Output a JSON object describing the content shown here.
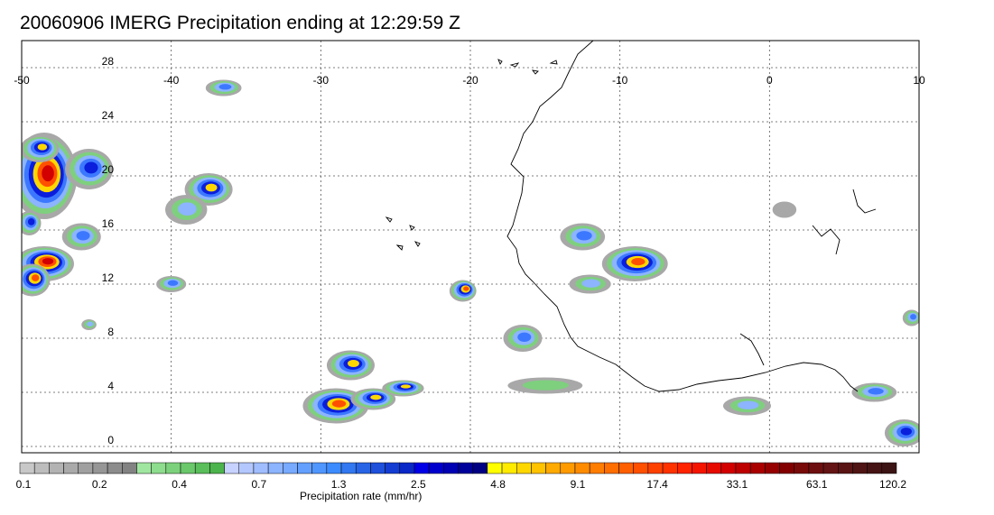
{
  "title": "20060906 IMERG Precipitation ending at 12:29:59 Z",
  "map": {
    "lon_min": -50,
    "lon_max": 10,
    "lat_min": -0.5,
    "lat_max": 30.5,
    "lon_ticks": [
      -50,
      -40,
      -30,
      -20,
      -10,
      0,
      10
    ],
    "lon_tick_labels": [
      "-50",
      "-40",
      "-30",
      "-20",
      "-10",
      "0",
      "10"
    ],
    "lat_ticks": [
      0,
      4,
      8,
      12,
      16,
      20,
      24,
      28
    ],
    "lat_tick_labels": [
      "0",
      "4",
      "8",
      "12",
      "16",
      "20",
      "24",
      "28"
    ],
    "grid": true,
    "coastline_color": "#000000",
    "rain_cells": [
      {
        "lon": -48.5,
        "lat": 20.0,
        "rx": 2.2,
        "ry": 3.2,
        "max_level": 7
      },
      {
        "lon": -48.8,
        "lat": 22.0,
        "rx": 1.3,
        "ry": 1.0,
        "max_level": 5
      },
      {
        "lon": -45.5,
        "lat": 20.5,
        "rx": 1.6,
        "ry": 1.5,
        "max_level": 4
      },
      {
        "lon": -48.5,
        "lat": 13.5,
        "rx": 2.0,
        "ry": 1.3,
        "max_level": 7
      },
      {
        "lon": -49.3,
        "lat": 12.3,
        "rx": 1.2,
        "ry": 1.2,
        "max_level": 6
      },
      {
        "lon": -46.0,
        "lat": 15.5,
        "rx": 1.3,
        "ry": 1.0,
        "max_level": 3
      },
      {
        "lon": -49.5,
        "lat": 16.5,
        "rx": 0.8,
        "ry": 0.9,
        "max_level": 4
      },
      {
        "lon": -45.5,
        "lat": 9.0,
        "rx": 0.5,
        "ry": 0.4,
        "max_level": 2
      },
      {
        "lon": -37.5,
        "lat": 19.0,
        "rx": 1.6,
        "ry": 1.2,
        "max_level": 5
      },
      {
        "lon": -39.0,
        "lat": 17.5,
        "rx": 1.4,
        "ry": 1.1,
        "max_level": 2
      },
      {
        "lon": -40.0,
        "lat": 12.0,
        "rx": 1.0,
        "ry": 0.6,
        "max_level": 3
      },
      {
        "lon": -36.5,
        "lat": 26.5,
        "rx": 1.2,
        "ry": 0.6,
        "max_level": 3
      },
      {
        "lon": -28.0,
        "lat": 6.0,
        "rx": 1.6,
        "ry": 1.1,
        "max_level": 5
      },
      {
        "lon": -29.0,
        "lat": 3.0,
        "rx": 2.2,
        "ry": 1.3,
        "max_level": 6
      },
      {
        "lon": -26.5,
        "lat": 3.5,
        "rx": 1.5,
        "ry": 0.8,
        "max_level": 5
      },
      {
        "lon": -24.5,
        "lat": 4.3,
        "rx": 1.4,
        "ry": 0.6,
        "max_level": 5
      },
      {
        "lon": -20.5,
        "lat": 11.5,
        "rx": 0.9,
        "ry": 0.8,
        "max_level": 6
      },
      {
        "lon": -16.5,
        "lat": 8.0,
        "rx": 1.3,
        "ry": 1.0,
        "max_level": 3
      },
      {
        "lon": -12.5,
        "lat": 15.5,
        "rx": 1.5,
        "ry": 1.0,
        "max_level": 3
      },
      {
        "lon": -9.0,
        "lat": 13.5,
        "rx": 2.2,
        "ry": 1.3,
        "max_level": 6
      },
      {
        "lon": -12.0,
        "lat": 12.0,
        "rx": 1.4,
        "ry": 0.7,
        "max_level": 2
      },
      {
        "lon": 9.0,
        "lat": 1.0,
        "rx": 1.3,
        "ry": 1.0,
        "max_level": 4
      },
      {
        "lon": 7.0,
        "lat": 4.0,
        "rx": 1.5,
        "ry": 0.7,
        "max_level": 3
      },
      {
        "lon": 9.5,
        "lat": 9.5,
        "rx": 0.6,
        "ry": 0.6,
        "max_level": 3
      },
      {
        "lon": -1.5,
        "lat": 3.0,
        "rx": 1.6,
        "ry": 0.7,
        "max_level": 2
      },
      {
        "lon": -15.0,
        "lat": 4.5,
        "rx": 2.5,
        "ry": 0.6,
        "max_level": 1
      },
      {
        "lon": 1.0,
        "lat": 17.5,
        "rx": 0.8,
        "ry": 0.6,
        "max_level": 0
      }
    ]
  },
  "colorbar": {
    "colors": [
      "#c8c8c8",
      "#bdbdbd",
      "#b3b3b3",
      "#aaaaaa",
      "#a0a0a0",
      "#969696",
      "#8c8c8c",
      "#828282",
      "#a0e6a0",
      "#8edc8e",
      "#7cd27c",
      "#6ac86a",
      "#5abe5a",
      "#4cb44c",
      "#c8d2ff",
      "#b4c8ff",
      "#a0beff",
      "#8cb4ff",
      "#78aaff",
      "#64a0ff",
      "#5096ff",
      "#3c8cff",
      "#3278f0",
      "#2864e6",
      "#1e50dc",
      "#143cd2",
      "#0a28c8",
      "#0000e6",
      "#0000cd",
      "#0000b4",
      "#00009b",
      "#000082",
      "#ffff00",
      "#ffeb00",
      "#ffd700",
      "#ffc300",
      "#ffaa00",
      "#ff9b00",
      "#ff8c00",
      "#ff7d00",
      "#ff6e00",
      "#ff5f00",
      "#ff5000",
      "#ff4100",
      "#ff3200",
      "#ff2300",
      "#f51400",
      "#e60a00",
      "#d20000",
      "#be0000",
      "#aa0000",
      "#960000",
      "#820000",
      "#780a0a",
      "#6e0f0f",
      "#641414",
      "#5a1414",
      "#501414",
      "#461414",
      "#3c1414"
    ],
    "labels": [
      "0.1",
      "0.2",
      "0.4",
      "0.7",
      "1.3",
      "2.5",
      "4.8",
      "9.1",
      "17.4",
      "33.1",
      "63.1",
      "120.2"
    ],
    "title": "Precipitation rate (mm/hr)"
  }
}
